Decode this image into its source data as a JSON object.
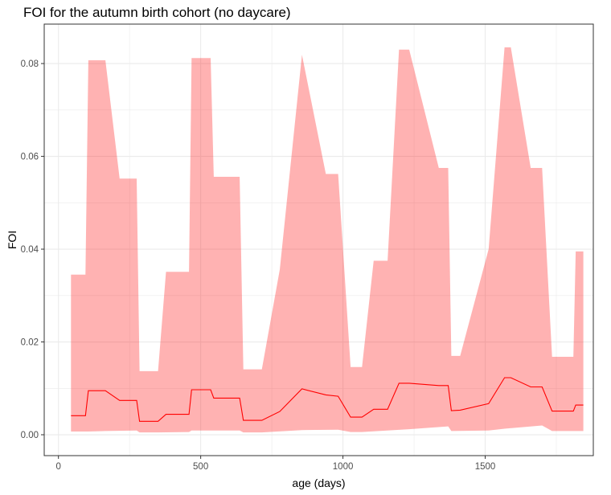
{
  "chart_data": {
    "type": "area",
    "title": "FOI for the autumn birth cohort (no daycare)",
    "xlabel": "age (days)",
    "ylabel": "FOI",
    "xlim": [
      -50,
      1880
    ],
    "ylim": [
      -0.0045,
      0.0885
    ],
    "x_ticks": [
      0,
      500,
      1000,
      1500
    ],
    "y_ticks": [
      0.0,
      0.02,
      0.04,
      0.06,
      0.08
    ],
    "x_tick_labels": [
      "0",
      "500",
      "1000",
      "1500"
    ],
    "y_tick_labels": [
      "0.00",
      "0.02",
      "0.04",
      "0.06",
      "0.08"
    ],
    "grid": true,
    "legend": "none",
    "colors": {
      "ribbon": "#ff0000",
      "ribbon_opacity": 0.3,
      "line": "#ff0000",
      "grid": "#ebebeb",
      "panel_border": "#333333"
    },
    "series": [
      {
        "type": "ribbon",
        "upper": [
          [
            44,
            0.0345
          ],
          [
            95,
            0.0345
          ],
          [
            105,
            0.0807
          ],
          [
            165,
            0.0807
          ],
          [
            215,
            0.0552
          ],
          [
            275,
            0.0552
          ],
          [
            285,
            0.0137
          ],
          [
            350,
            0.0137
          ],
          [
            378,
            0.0351
          ],
          [
            459,
            0.0351
          ],
          [
            468,
            0.0812
          ],
          [
            535,
            0.0812
          ],
          [
            546,
            0.0556
          ],
          [
            637,
            0.0556
          ],
          [
            650,
            0.0141
          ],
          [
            715,
            0.0141
          ],
          [
            778,
            0.0356
          ],
          [
            856,
            0.0819
          ],
          [
            940,
            0.0562
          ],
          [
            983,
            0.0562
          ],
          [
            1027,
            0.0146
          ],
          [
            1067,
            0.0146
          ],
          [
            1108,
            0.0375
          ],
          [
            1157,
            0.0375
          ],
          [
            1197,
            0.083
          ],
          [
            1233,
            0.083
          ],
          [
            1337,
            0.0575
          ],
          [
            1370,
            0.0575
          ],
          [
            1381,
            0.017
          ],
          [
            1412,
            0.017
          ],
          [
            1512,
            0.04
          ],
          [
            1568,
            0.0835
          ],
          [
            1590,
            0.0835
          ],
          [
            1660,
            0.0575
          ],
          [
            1700,
            0.0575
          ],
          [
            1735,
            0.0168
          ],
          [
            1810,
            0.0168
          ],
          [
            1818,
            0.0395
          ],
          [
            1845,
            0.0395
          ]
        ],
        "lower": [
          [
            44,
            0.0007
          ],
          [
            105,
            0.0007
          ],
          [
            165,
            0.0008
          ],
          [
            275,
            0.0009
          ],
          [
            285,
            0.0005
          ],
          [
            350,
            0.0005
          ],
          [
            459,
            0.0006
          ],
          [
            468,
            0.0009
          ],
          [
            637,
            0.0009
          ],
          [
            650,
            0.0005
          ],
          [
            715,
            0.0005
          ],
          [
            856,
            0.001
          ],
          [
            983,
            0.0011
          ],
          [
            1027,
            0.0006
          ],
          [
            1067,
            0.0006
          ],
          [
            1233,
            0.0012
          ],
          [
            1370,
            0.0018
          ],
          [
            1381,
            0.0008
          ],
          [
            1512,
            0.0009
          ],
          [
            1568,
            0.0013
          ],
          [
            1700,
            0.002
          ],
          [
            1735,
            0.0008
          ],
          [
            1845,
            0.0008
          ]
        ]
      },
      {
        "type": "line",
        "points": [
          [
            44,
            0.0041
          ],
          [
            95,
            0.0041
          ],
          [
            105,
            0.0095
          ],
          [
            165,
            0.0095
          ],
          [
            215,
            0.0074
          ],
          [
            275,
            0.0074
          ],
          [
            285,
            0.0029
          ],
          [
            350,
            0.0029
          ],
          [
            378,
            0.0044
          ],
          [
            459,
            0.0044
          ],
          [
            468,
            0.0097
          ],
          [
            535,
            0.0097
          ],
          [
            546,
            0.0079
          ],
          [
            637,
            0.0079
          ],
          [
            650,
            0.0031
          ],
          [
            715,
            0.0031
          ],
          [
            778,
            0.005
          ],
          [
            856,
            0.0099
          ],
          [
            940,
            0.0086
          ],
          [
            983,
            0.0083
          ],
          [
            1027,
            0.0038
          ],
          [
            1067,
            0.0038
          ],
          [
            1108,
            0.0055
          ],
          [
            1157,
            0.0055
          ],
          [
            1197,
            0.0111
          ],
          [
            1233,
            0.0111
          ],
          [
            1337,
            0.0106
          ],
          [
            1370,
            0.0106
          ],
          [
            1381,
            0.0052
          ],
          [
            1412,
            0.0053
          ],
          [
            1512,
            0.0067
          ],
          [
            1568,
            0.0123
          ],
          [
            1590,
            0.0123
          ],
          [
            1660,
            0.0103
          ],
          [
            1700,
            0.0103
          ],
          [
            1735,
            0.0051
          ],
          [
            1810,
            0.0051
          ],
          [
            1818,
            0.0064
          ],
          [
            1845,
            0.0064
          ]
        ]
      }
    ]
  }
}
